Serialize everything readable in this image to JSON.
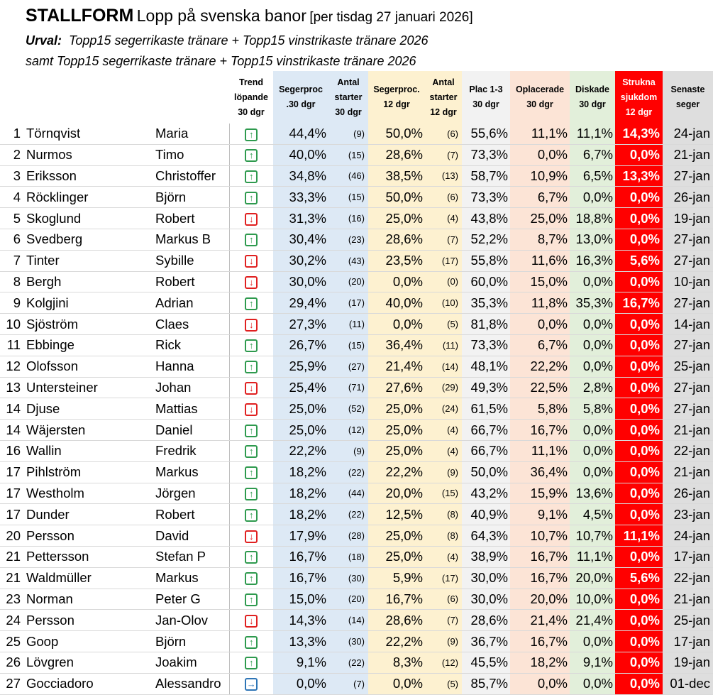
{
  "header": {
    "brand": "STALLFORM",
    "title": "Lopp på svenska banor",
    "date": "[per tisdag 27 januari 2026]",
    "sub1_label": "Urval:",
    "sub1_text": "Topp15 segerrikaste tränare + Topp15 vinstrikaste tränare 2026",
    "sub2_text": "samt Topp15 segerrikaste tränare + Topp15 vinstrikaste tränare 2026"
  },
  "columns": [
    "Trend\nlöpande\n30 dgr",
    "Segerproc\n.30 dgr",
    "Antal\nstarter\n30 dgr",
    "Segerproc.\n12 dgr",
    "Antal\nstarter\n12 dgr",
    "Plac 1-3\n30 dgr",
    "Oplacerade\n30 dgr",
    "Diskade\n30 dgr",
    "Strukna\nsjukdom\n12 dgr",
    "Senaste\nseger"
  ],
  "icons": {
    "up": "arrow-up-icon",
    "down": "arrow-down-icon",
    "right": "arrow-right-icon"
  },
  "colors": {
    "up": "#2e9a4e",
    "down": "#e02020",
    "right": "#2e75b6",
    "sick": "#ff0000"
  },
  "rows": [
    {
      "rank": "1",
      "last": "Törnqvist",
      "first": "Maria",
      "trend": "up",
      "win30": "44,4%",
      "starts30": "(9)",
      "win12": "50,0%",
      "starts12": "(6)",
      "plac": "55,6%",
      "opl": "11,1%",
      "disk": "11,1%",
      "sick": "14,3%",
      "latest": "24-jan"
    },
    {
      "rank": "2",
      "last": "Nurmos",
      "first": "Timo",
      "trend": "up",
      "win30": "40,0%",
      "starts30": "(15)",
      "win12": "28,6%",
      "starts12": "(7)",
      "plac": "73,3%",
      "opl": "0,0%",
      "disk": "6,7%",
      "sick": "0,0%",
      "latest": "21-jan"
    },
    {
      "rank": "3",
      "last": "Eriksson",
      "first": "Christoffer",
      "trend": "up",
      "win30": "34,8%",
      "starts30": "(46)",
      "win12": "38,5%",
      "starts12": "(13)",
      "plac": "58,7%",
      "opl": "10,9%",
      "disk": "6,5%",
      "sick": "13,3%",
      "latest": "27-jan"
    },
    {
      "rank": "4",
      "last": "Röcklinger",
      "first": "Björn",
      "trend": "up",
      "win30": "33,3%",
      "starts30": "(15)",
      "win12": "50,0%",
      "starts12": "(6)",
      "plac": "73,3%",
      "opl": "6,7%",
      "disk": "0,0%",
      "sick": "0,0%",
      "latest": "26-jan"
    },
    {
      "rank": "5",
      "last": "Skoglund",
      "first": "Robert",
      "trend": "down",
      "win30": "31,3%",
      "starts30": "(16)",
      "win12": "25,0%",
      "starts12": "(4)",
      "plac": "43,8%",
      "opl": "25,0%",
      "disk": "18,8%",
      "sick": "0,0%",
      "latest": "19-jan"
    },
    {
      "rank": "6",
      "last": "Svedberg",
      "first": "Markus B",
      "trend": "up",
      "win30": "30,4%",
      "starts30": "(23)",
      "win12": "28,6%",
      "starts12": "(7)",
      "plac": "52,2%",
      "opl": "8,7%",
      "disk": "13,0%",
      "sick": "0,0%",
      "latest": "27-jan"
    },
    {
      "rank": "7",
      "last": "Tinter",
      "first": "Sybille",
      "trend": "down",
      "win30": "30,2%",
      "starts30": "(43)",
      "win12": "23,5%",
      "starts12": "(17)",
      "plac": "55,8%",
      "opl": "11,6%",
      "disk": "16,3%",
      "sick": "5,6%",
      "latest": "27-jan"
    },
    {
      "rank": "8",
      "last": "Bergh",
      "first": "Robert",
      "trend": "down",
      "win30": "30,0%",
      "starts30": "(20)",
      "win12": "0,0%",
      "starts12": "(0)",
      "plac": "60,0%",
      "opl": "15,0%",
      "disk": "0,0%",
      "sick": "0,0%",
      "latest": "10-jan"
    },
    {
      "rank": "9",
      "last": "Kolgjini",
      "first": "Adrian",
      "trend": "up",
      "win30": "29,4%",
      "starts30": "(17)",
      "win12": "40,0%",
      "starts12": "(10)",
      "plac": "35,3%",
      "opl": "11,8%",
      "disk": "35,3%",
      "sick": "16,7%",
      "latest": "27-jan"
    },
    {
      "rank": "10",
      "last": "Sjöström",
      "first": "Claes",
      "trend": "down",
      "win30": "27,3%",
      "starts30": "(11)",
      "win12": "0,0%",
      "starts12": "(5)",
      "plac": "81,8%",
      "opl": "0,0%",
      "disk": "0,0%",
      "sick": "0,0%",
      "latest": "14-jan"
    },
    {
      "rank": "11",
      "last": "Ebbinge",
      "first": "Rick",
      "trend": "up",
      "win30": "26,7%",
      "starts30": "(15)",
      "win12": "36,4%",
      "starts12": "(11)",
      "plac": "73,3%",
      "opl": "6,7%",
      "disk": "0,0%",
      "sick": "0,0%",
      "latest": "27-jan"
    },
    {
      "rank": "12",
      "last": "Olofsson",
      "first": "Hanna",
      "trend": "up",
      "win30": "25,9%",
      "starts30": "(27)",
      "win12": "21,4%",
      "starts12": "(14)",
      "plac": "48,1%",
      "opl": "22,2%",
      "disk": "0,0%",
      "sick": "0,0%",
      "latest": "25-jan"
    },
    {
      "rank": "13",
      "last": "Untersteiner",
      "first": "Johan",
      "trend": "down",
      "win30": "25,4%",
      "starts30": "(71)",
      "win12": "27,6%",
      "starts12": "(29)",
      "plac": "49,3%",
      "opl": "22,5%",
      "disk": "2,8%",
      "sick": "0,0%",
      "latest": "27-jan"
    },
    {
      "rank": "14",
      "last": "Djuse",
      "first": "Mattias",
      "trend": "down",
      "win30": "25,0%",
      "starts30": "(52)",
      "win12": "25,0%",
      "starts12": "(24)",
      "plac": "61,5%",
      "opl": "5,8%",
      "disk": "5,8%",
      "sick": "0,0%",
      "latest": "27-jan"
    },
    {
      "rank": "14",
      "last": "Wäjersten",
      "first": "Daniel",
      "trend": "up",
      "win30": "25,0%",
      "starts30": "(12)",
      "win12": "25,0%",
      "starts12": "(4)",
      "plac": "66,7%",
      "opl": "16,7%",
      "disk": "0,0%",
      "sick": "0,0%",
      "latest": "21-jan"
    },
    {
      "rank": "16",
      "last": "Wallin",
      "first": "Fredrik",
      "trend": "up",
      "win30": "22,2%",
      "starts30": "(9)",
      "win12": "25,0%",
      "starts12": "(4)",
      "plac": "66,7%",
      "opl": "11,1%",
      "disk": "0,0%",
      "sick": "0,0%",
      "latest": "22-jan"
    },
    {
      "rank": "17",
      "last": "Pihlström",
      "first": "Markus",
      "trend": "up",
      "win30": "18,2%",
      "starts30": "(22)",
      "win12": "22,2%",
      "starts12": "(9)",
      "plac": "50,0%",
      "opl": "36,4%",
      "disk": "0,0%",
      "sick": "0,0%",
      "latest": "21-jan"
    },
    {
      "rank": "17",
      "last": "Westholm",
      "first": "Jörgen",
      "trend": "up",
      "win30": "18,2%",
      "starts30": "(44)",
      "win12": "20,0%",
      "starts12": "(15)",
      "plac": "43,2%",
      "opl": "15,9%",
      "disk": "13,6%",
      "sick": "0,0%",
      "latest": "26-jan"
    },
    {
      "rank": "17",
      "last": "Dunder",
      "first": "Robert",
      "trend": "up",
      "win30": "18,2%",
      "starts30": "(22)",
      "win12": "12,5%",
      "starts12": "(8)",
      "plac": "40,9%",
      "opl": "9,1%",
      "disk": "4,5%",
      "sick": "0,0%",
      "latest": "23-jan"
    },
    {
      "rank": "20",
      "last": "Persson",
      "first": "David",
      "trend": "down",
      "win30": "17,9%",
      "starts30": "(28)",
      "win12": "25,0%",
      "starts12": "(8)",
      "plac": "64,3%",
      "opl": "10,7%",
      "disk": "10,7%",
      "sick": "11,1%",
      "latest": "24-jan"
    },
    {
      "rank": "21",
      "last": "Pettersson",
      "first": "Stefan P",
      "trend": "up",
      "win30": "16,7%",
      "starts30": "(18)",
      "win12": "25,0%",
      "starts12": "(4)",
      "plac": "38,9%",
      "opl": "16,7%",
      "disk": "11,1%",
      "sick": "0,0%",
      "latest": "17-jan"
    },
    {
      "rank": "21",
      "last": "Waldmüller",
      "first": "Markus",
      "trend": "up",
      "win30": "16,7%",
      "starts30": "(30)",
      "win12": "5,9%",
      "starts12": "(17)",
      "plac": "30,0%",
      "opl": "16,7%",
      "disk": "20,0%",
      "sick": "5,6%",
      "latest": "22-jan"
    },
    {
      "rank": "23",
      "last": "Norman",
      "first": "Peter G",
      "trend": "up",
      "win30": "15,0%",
      "starts30": "(20)",
      "win12": "16,7%",
      "starts12": "(6)",
      "plac": "30,0%",
      "opl": "20,0%",
      "disk": "10,0%",
      "sick": "0,0%",
      "latest": "21-jan"
    },
    {
      "rank": "24",
      "last": "Persson",
      "first": "Jan-Olov",
      "trend": "down",
      "win30": "14,3%",
      "starts30": "(14)",
      "win12": "28,6%",
      "starts12": "(7)",
      "plac": "28,6%",
      "opl": "21,4%",
      "disk": "21,4%",
      "sick": "0,0%",
      "latest": "25-jan"
    },
    {
      "rank": "25",
      "last": "Goop",
      "first": "Björn",
      "trend": "up",
      "win30": "13,3%",
      "starts30": "(30)",
      "win12": "22,2%",
      "starts12": "(9)",
      "plac": "36,7%",
      "opl": "16,7%",
      "disk": "0,0%",
      "sick": "0,0%",
      "latest": "17-jan"
    },
    {
      "rank": "26",
      "last": "Lövgren",
      "first": "Joakim",
      "trend": "up",
      "win30": "9,1%",
      "starts30": "(22)",
      "win12": "8,3%",
      "starts12": "(12)",
      "plac": "45,5%",
      "opl": "18,2%",
      "disk": "9,1%",
      "sick": "0,0%",
      "latest": "19-jan"
    },
    {
      "rank": "27",
      "last": "Gocciadoro",
      "first": "Alessandro",
      "trend": "right",
      "win30": "0,0%",
      "starts30": "(7)",
      "win12": "0,0%",
      "starts12": "(5)",
      "plac": "85,7%",
      "opl": "0,0%",
      "disk": "0,0%",
      "sick": "0,0%",
      "latest": "01-dec"
    }
  ]
}
